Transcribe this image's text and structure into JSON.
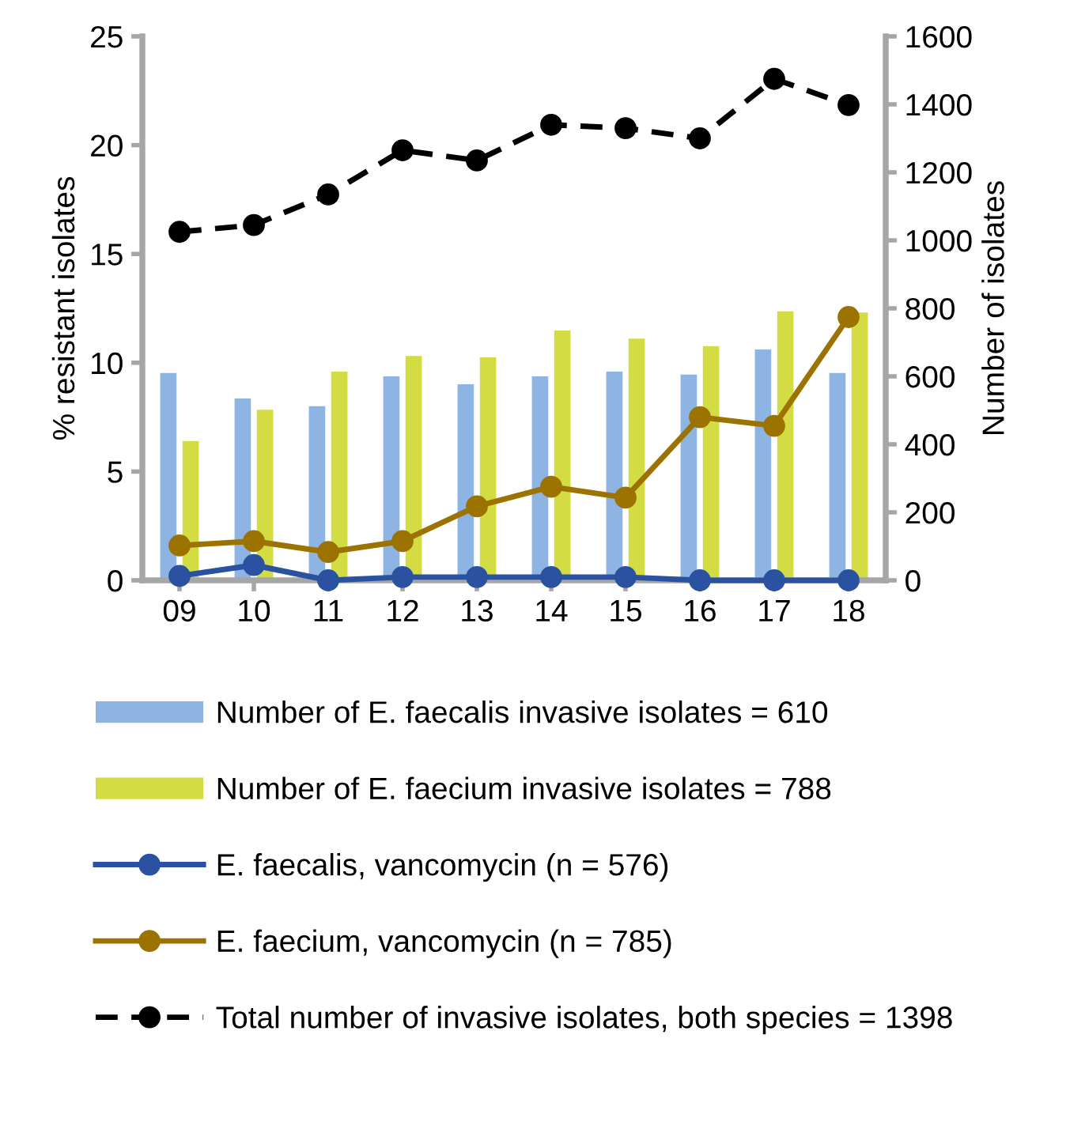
{
  "chart_data": {
    "type": "bar",
    "ylabel": "% resistant isolates",
    "y2label": "Number of isolates",
    "categories": [
      "09",
      "10",
      "11",
      "12",
      "13",
      "14",
      "15",
      "16",
      "17",
      "18"
    ],
    "series": [
      {
        "name": "Number of E. faecalis invasive isolates = 610",
        "axis": "y2",
        "color": "#8db4e2",
        "values": [
          610,
          535,
          512,
          600,
          577,
          600,
          614,
          605,
          679,
          610
        ]
      },
      {
        "name": "Number of E. faecium invasive isolates = 788",
        "axis": "y2",
        "color": "#d4dc44",
        "values": [
          410,
          502,
          614,
          660,
          656,
          735,
          711,
          689,
          791,
          788
        ]
      },
      {
        "name": "E. faecalis, vancomycin (n = 576)",
        "type": "line",
        "color": "#2a52a0",
        "marker": "circle",
        "line_style": "solid",
        "values": [
          0.2,
          0.7,
          0,
          0.15,
          0.15,
          0.15,
          0.15,
          0,
          0,
          0
        ]
      },
      {
        "name": "E. faecium, vancomycin (n = 785)",
        "type": "line",
        "color": "#9c7200",
        "marker": "circle",
        "line_style": "solid",
        "values": [
          1.6,
          1.8,
          1.3,
          1.8,
          3.4,
          4.3,
          3.8,
          7.5,
          7.1,
          12.1
        ]
      },
      {
        "name": "Total number of invasive isolates, both species = 1398",
        "type": "line",
        "axis": "y2",
        "color": "#000000",
        "marker": "circle",
        "line_style": "dashed",
        "values": [
          1025,
          1045,
          1135,
          1265,
          1235,
          1340,
          1330,
          1300,
          1475,
          1398
        ]
      }
    ],
    "ylim": [
      0,
      25
    ],
    "yticks": [
      0,
      5,
      10,
      15,
      20,
      25
    ],
    "y2lim": [
      0,
      1600
    ],
    "y2ticks": [
      0,
      200,
      400,
      600,
      800,
      1000,
      1200,
      1400,
      1600
    ],
    "grid": false,
    "legend": "bottom"
  }
}
